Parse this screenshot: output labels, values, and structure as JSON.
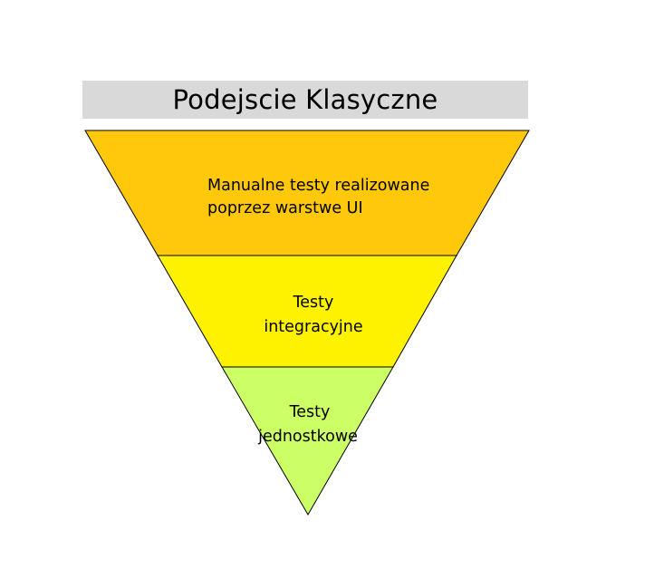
{
  "title": "Podejscie Klasyczne",
  "layers": [
    {
      "id": "manual",
      "lines": [
        "Manualne testy realizowane",
        "poprzez warstwe UI"
      ],
      "color": "#ffc80b"
    },
    {
      "id": "integration",
      "lines": [
        "Testy",
        "integracyjne"
      ],
      "color": "#fff200"
    },
    {
      "id": "unit",
      "lines": [
        "Testy",
        "jednostkowe"
      ],
      "color": "#ccff66"
    }
  ],
  "outline_color": "#000000",
  "title_background": "#d9d9d9"
}
